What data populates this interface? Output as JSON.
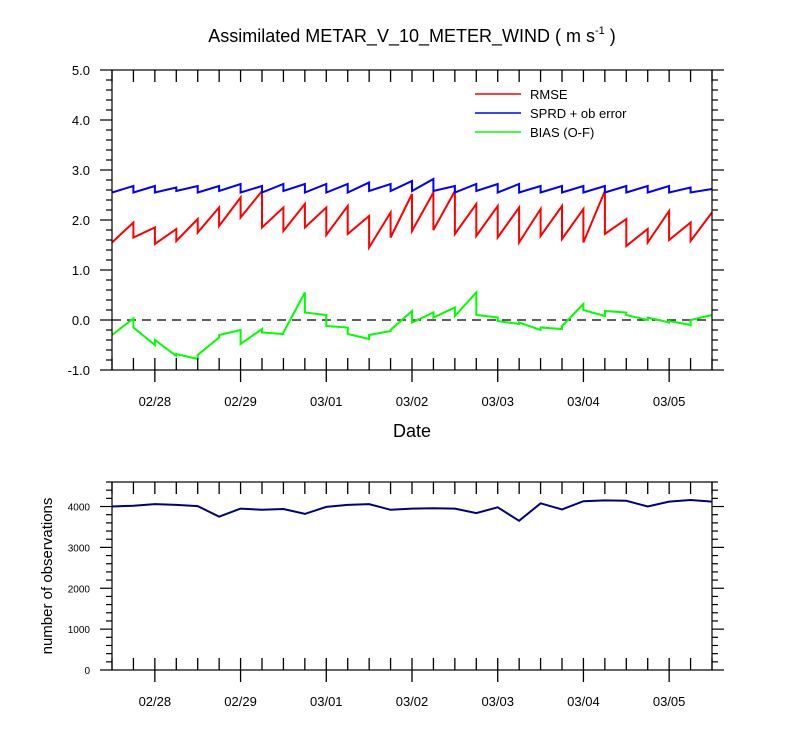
{
  "chart_data": [
    {
      "type": "line",
      "title_main": "Assimilated METAR_V_10_METER_WIND ( m s",
      "title_sup": "-1",
      "title_end": " )",
      "xlabel": "Date",
      "ylabel": "",
      "ylim": [
        -1.0,
        5.0
      ],
      "yticks": [
        "-1.0",
        "0.0",
        "1.0",
        "2.0",
        "3.0",
        "4.0",
        "5.0"
      ],
      "xlim": [
        0,
        7
      ],
      "xtick_labels": [
        "02/28",
        "02/29",
        "03/01",
        "03/02",
        "03/03",
        "03/04",
        "03/05"
      ],
      "xtick_positions": [
        0.5,
        1.5,
        2.5,
        3.5,
        4.5,
        5.5,
        6.5
      ],
      "zero_line": true,
      "legend": [
        "RMSE",
        "SPRD + ob error",
        "BIAS (O-F)"
      ],
      "legend_placement": "top-right",
      "series": [
        {
          "name": "RMSE",
          "color": "#ff0000",
          "x": [
            0,
            0.25,
            0.25,
            0.5,
            0.5,
            0.75,
            0.75,
            1,
            1,
            1.25,
            1.25,
            1.5,
            1.5,
            1.75,
            1.75,
            2,
            2,
            2.25,
            2.25,
            2.5,
            2.5,
            2.75,
            2.75,
            3,
            3,
            3.25,
            3.25,
            3.5,
            3.5,
            3.75,
            3.75,
            4,
            4,
            4.25,
            4.25,
            4.5,
            4.5,
            4.75,
            4.75,
            5,
            5,
            5.25,
            5.25,
            5.5,
            5.5,
            5.75,
            5.75,
            6,
            6,
            6.25,
            6.25,
            6.5,
            6.5,
            6.75,
            6.75,
            7
          ],
          "values": [
            1.55,
            1.95,
            1.65,
            1.85,
            1.52,
            1.82,
            1.58,
            2.02,
            1.75,
            2.25,
            1.88,
            2.45,
            2.05,
            2.58,
            1.85,
            2.25,
            1.78,
            2.32,
            1.85,
            2.25,
            1.7,
            2.28,
            1.72,
            2.08,
            1.45,
            2.15,
            1.65,
            2.52,
            1.78,
            2.55,
            1.8,
            2.58,
            1.72,
            2.32,
            1.68,
            2.28,
            1.65,
            2.25,
            1.55,
            2.22,
            1.68,
            2.28,
            1.62,
            2.22,
            1.55,
            2.58,
            1.72,
            2.02,
            1.48,
            1.82,
            1.55,
            2.18,
            1.6,
            1.95,
            1.58,
            2.15
          ]
        },
        {
          "name": "SPRD + ob error",
          "color": "#0000ff",
          "x": [
            0,
            0.25,
            0.25,
            0.5,
            0.5,
            0.75,
            0.75,
            1,
            1,
            1.25,
            1.25,
            1.5,
            1.5,
            1.75,
            1.75,
            2,
            2,
            2.25,
            2.25,
            2.5,
            2.5,
            2.75,
            2.75,
            3,
            3,
            3.25,
            3.25,
            3.5,
            3.5,
            3.75,
            3.75,
            4,
            4,
            4.25,
            4.25,
            4.5,
            4.5,
            4.75,
            4.75,
            5,
            5,
            5.25,
            5.25,
            5.5,
            5.5,
            5.75,
            5.75,
            6,
            6,
            6.25,
            6.25,
            6.5,
            6.5,
            6.75,
            6.75,
            7
          ],
          "values": [
            2.55,
            2.68,
            2.55,
            2.68,
            2.55,
            2.65,
            2.58,
            2.68,
            2.55,
            2.68,
            2.58,
            2.72,
            2.55,
            2.68,
            2.55,
            2.72,
            2.58,
            2.72,
            2.55,
            2.72,
            2.55,
            2.72,
            2.55,
            2.75,
            2.58,
            2.72,
            2.58,
            2.78,
            2.58,
            2.82,
            2.58,
            2.68,
            2.55,
            2.72,
            2.58,
            2.72,
            2.55,
            2.72,
            2.55,
            2.68,
            2.55,
            2.68,
            2.55,
            2.68,
            2.55,
            2.68,
            2.55,
            2.68,
            2.55,
            2.68,
            2.55,
            2.68,
            2.55,
            2.65,
            2.55,
            2.62
          ]
        },
        {
          "name": "BIAS (O-F)",
          "color": "#00ff00",
          "x": [
            0,
            0.25,
            0.25,
            0.5,
            0.5,
            0.75,
            0.75,
            1,
            1,
            1.25,
            1.25,
            1.5,
            1.5,
            1.75,
            1.75,
            2,
            2,
            2.25,
            2.25,
            2.5,
            2.5,
            2.75,
            2.75,
            3,
            3,
            3.25,
            3.25,
            3.5,
            3.5,
            3.75,
            3.75,
            4,
            4,
            4.25,
            4.25,
            4.5,
            4.5,
            4.75,
            4.75,
            5,
            5,
            5.25,
            5.25,
            5.5,
            5.5,
            5.75,
            5.75,
            6,
            6,
            6.25,
            6.25,
            6.5,
            6.5,
            6.75,
            6.75,
            7
          ],
          "values": [
            -0.3,
            0.03,
            -0.15,
            -0.5,
            -0.4,
            -0.72,
            -0.68,
            -0.78,
            -0.7,
            -0.35,
            -0.3,
            -0.2,
            -0.48,
            -0.18,
            -0.25,
            -0.28,
            -0.25,
            0.55,
            0.15,
            0.1,
            -0.12,
            -0.15,
            -0.28,
            -0.38,
            -0.3,
            -0.22,
            -0.2,
            0.18,
            -0.05,
            0.15,
            0.05,
            0.25,
            0.08,
            0.55,
            0.1,
            0.05,
            -0.02,
            -0.08,
            -0.05,
            -0.2,
            -0.15,
            -0.18,
            -0.12,
            0.32,
            0.2,
            0.08,
            0.18,
            0.15,
            0.1,
            0.0,
            0.05,
            -0.05,
            -0.02,
            -0.1,
            0.0,
            0.1
          ]
        }
      ]
    },
    {
      "type": "line",
      "title": "",
      "xlabel": "",
      "ylabel": "number of observations",
      "ylim": [
        0,
        4600
      ],
      "yticks": [
        "0",
        "1000",
        "2000",
        "3000",
        "4000"
      ],
      "xlim": [
        0,
        7
      ],
      "xtick_labels": [
        "02/28",
        "02/29",
        "03/01",
        "03/02",
        "03/03",
        "03/04",
        "03/05"
      ],
      "xtick_positions": [
        0.5,
        1.5,
        2.5,
        3.5,
        4.5,
        5.5,
        6.5
      ],
      "series": [
        {
          "name": "number of observations",
          "color": "#00007f",
          "x": [
            0,
            0.25,
            0.5,
            0.75,
            1,
            1.25,
            1.5,
            1.75,
            2,
            2.25,
            2.5,
            2.75,
            3,
            3.25,
            3.5,
            3.75,
            4,
            4.25,
            4.5,
            4.75,
            5,
            5.25,
            5.5,
            5.75,
            6,
            6.25,
            6.5,
            6.75,
            7
          ],
          "values": [
            4000,
            4020,
            4060,
            4040,
            4010,
            3750,
            3950,
            3920,
            3940,
            3820,
            3990,
            4040,
            4060,
            3920,
            3950,
            3960,
            3950,
            3840,
            3980,
            3650,
            4080,
            3930,
            4130,
            4150,
            4140,
            4000,
            4120,
            4160,
            4120
          ]
        }
      ]
    }
  ]
}
